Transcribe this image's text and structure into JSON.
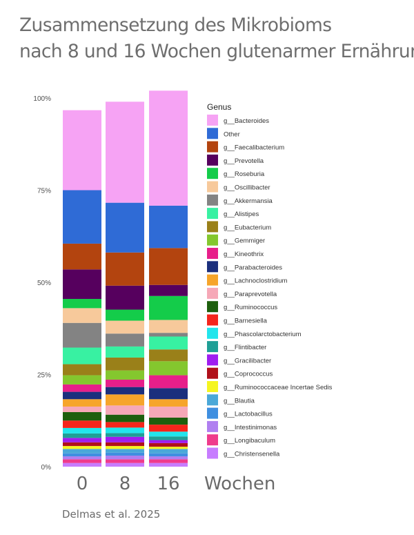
{
  "title": {
    "line1": "Zusammensetzung des Mikrobioms",
    "line2": "nach 8 und 16 Wochen glutenarmer Ernährung"
  },
  "source": "Delmas et al. 2025",
  "chart_data": {
    "type": "bar",
    "stacked": true,
    "percent": true,
    "categories": [
      "0",
      "8",
      "16"
    ],
    "xlabel": "Wochen",
    "ylim": [
      0,
      100
    ],
    "yticks": [
      "0%",
      "25%",
      "50%",
      "75%",
      "100%"
    ],
    "legend_title": "Genus",
    "legend_position": "right",
    "series": [
      {
        "name": "g__Christensenella",
        "color": "#c77cff",
        "values": [
          1.0,
          1.0,
          1.0
        ]
      },
      {
        "name": "g__Longibaculum",
        "color": "#ef3b8c",
        "values": [
          1.0,
          1.0,
          1.0
        ]
      },
      {
        "name": "g__Intestinimonas",
        "color": "#b07ff0",
        "values": [
          0.8,
          1.0,
          0.8
        ]
      },
      {
        "name": "g__Lactobacillus",
        "color": "#3f8fe0",
        "values": [
          0.8,
          0.8,
          0.8
        ]
      },
      {
        "name": "g__Blautia",
        "color": "#4aa8d8",
        "values": [
          1.2,
          1.0,
          1.2
        ]
      },
      {
        "name": "g__Ruminococcaceae Incertae Sedis",
        "color": "#f5f520",
        "values": [
          0.8,
          0.8,
          0.6
        ]
      },
      {
        "name": "g__Coprococcus",
        "color": "#b0101a",
        "values": [
          1.0,
          1.0,
          1.0
        ]
      },
      {
        "name": "g__Gracilibacter",
        "color": "#9f1df0",
        "values": [
          1.2,
          1.5,
          0.8
        ]
      },
      {
        "name": "g__Flintibacter",
        "color": "#1f9f96",
        "values": [
          1.2,
          1.0,
          1.0
        ]
      },
      {
        "name": "g__Phascolarctobacterium",
        "color": "#22e5ec",
        "values": [
          1.5,
          1.5,
          1.3
        ]
      },
      {
        "name": "g__Barnesiella",
        "color": "#f5251c",
        "values": [
          2.0,
          1.5,
          1.9
        ]
      },
      {
        "name": "g__Ruminococcus",
        "color": "#1d5f0d",
        "values": [
          2.3,
          2.0,
          1.9
        ]
      },
      {
        "name": "g__Paraprevotella",
        "color": "#f6a8b7",
        "values": [
          1.5,
          2.5,
          3.0
        ]
      },
      {
        "name": "g__Lachnoclostridium",
        "color": "#f6a52a",
        "values": [
          2.0,
          3.0,
          2.0
        ]
      },
      {
        "name": "g__Parabacteroides",
        "color": "#1b2f7d",
        "values": [
          2.0,
          2.0,
          3.0
        ]
      },
      {
        "name": "g__Kineothrix",
        "color": "#e71f8a",
        "values": [
          2.0,
          2.0,
          3.5
        ]
      },
      {
        "name": "g__Gemmiger",
        "color": "#84c72e",
        "values": [
          2.5,
          2.5,
          3.8
        ]
      },
      {
        "name": "g__Eubacterium",
        "color": "#9a8019",
        "values": [
          3.0,
          3.5,
          3.2
        ]
      },
      {
        "name": "g__Alistipes",
        "color": "#38f1a2",
        "values": [
          4.5,
          3.0,
          3.5
        ]
      },
      {
        "name": "g__Akkermansia",
        "color": "#838383",
        "values": [
          6.7,
          3.5,
          1.0
        ]
      },
      {
        "name": "g__Oscillibacter",
        "color": "#f7c99b",
        "values": [
          4.0,
          3.5,
          3.5
        ]
      },
      {
        "name": "g__Roseburia",
        "color": "#14cc4a",
        "values": [
          2.5,
          3.0,
          6.5
        ]
      },
      {
        "name": "g__Prevotella",
        "color": "#56005e",
        "values": [
          8.0,
          6.5,
          3.0
        ]
      },
      {
        "name": "g__Faecalibacterium",
        "color": "#b3440f",
        "values": [
          7.0,
          9.0,
          10.0
        ]
      },
      {
        "name": "Other",
        "color": "#2f6bd6",
        "values": [
          14.5,
          13.5,
          11.5
        ]
      },
      {
        "name": "g__Bacteroides",
        "color": "#f6a3f4",
        "values": [
          21.7,
          27.4,
          31.2
        ]
      }
    ]
  }
}
